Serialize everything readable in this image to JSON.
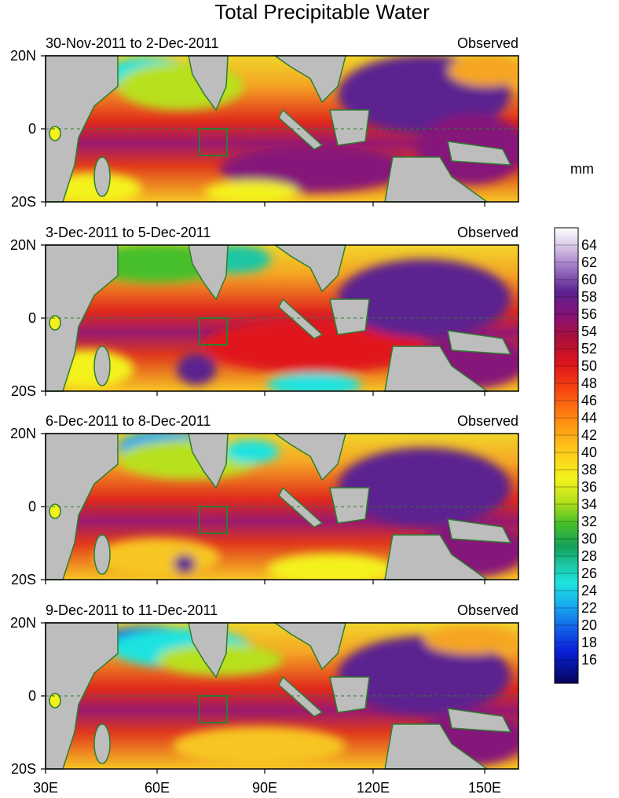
{
  "title": "Total Precipitable Water",
  "units": "mm",
  "panels": [
    {
      "date_range": "30-Nov-2011 to 2-Dec-2011",
      "label": "Observed"
    },
    {
      "date_range": "3-Dec-2011 to 5-Dec-2011",
      "label": "Observed"
    },
    {
      "date_range": "6-Dec-2011 to 8-Dec-2011",
      "label": "Observed"
    },
    {
      "date_range": "9-Dec-2011 to 11-Dec-2011",
      "label": "Observed"
    }
  ],
  "lat_labels": [
    "20N",
    "0",
    "20S"
  ],
  "lon_labels": [
    "30E",
    "60E",
    "90E",
    "120E",
    "150E"
  ],
  "colorbar_labels": [
    "64",
    "62",
    "60",
    "58",
    "56",
    "54",
    "52",
    "50",
    "48",
    "46",
    "44",
    "42",
    "40",
    "38",
    "36",
    "34",
    "32",
    "30",
    "28",
    "26",
    "24",
    "22",
    "20",
    "18",
    "16"
  ],
  "colors": {
    "land": "#bdbdbd",
    "coast": "#2e7d2e",
    "box": "#2e7d2e"
  }
}
